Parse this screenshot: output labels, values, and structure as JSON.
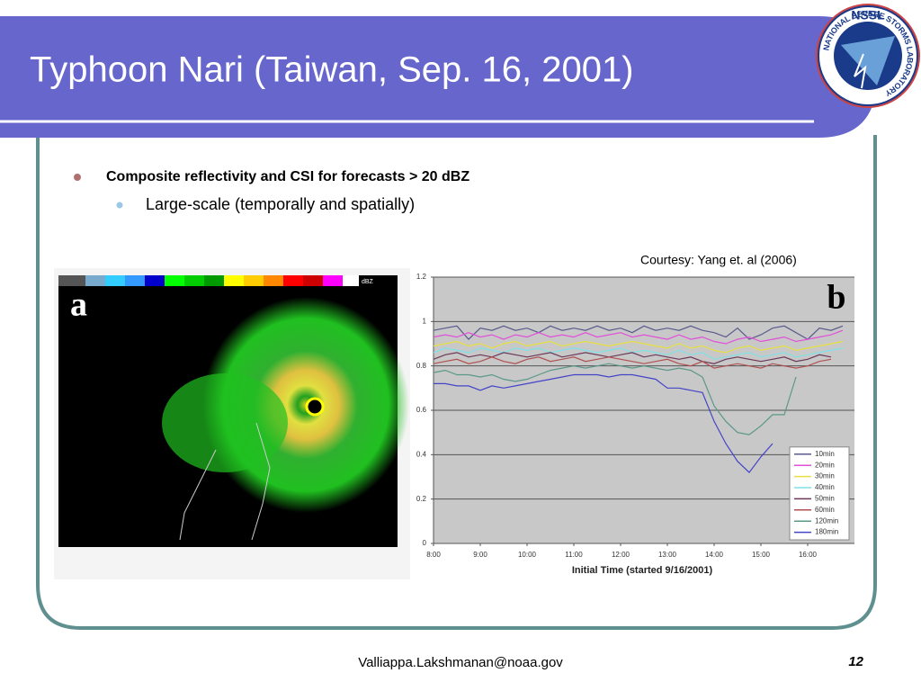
{
  "header": {
    "title": "Typhoon Nari (Taiwan, Sep. 16, 2001)",
    "logo": {
      "acronym": "NSSL",
      "ring": "NATIONAL SEVERE STORMS LABORATORY"
    }
  },
  "bullets": [
    {
      "text": "Composite reflectivity and CSI for forecasts > 20 dBZ",
      "sub": [
        "Large-scale (temporally and spatially)"
      ]
    }
  ],
  "credit": "Courtesy: Yang et. al (2006)",
  "panel_a": {
    "label": "a",
    "unit": "dBZ"
  },
  "chart_data": {
    "type": "line",
    "label": "b",
    "x_label": "Initial Time (started 9/16/2001)",
    "x": [
      8,
      8.25,
      8.5,
      8.75,
      9,
      9.25,
      9.5,
      9.75,
      10,
      10.25,
      10.5,
      10.75,
      11,
      11.25,
      11.5,
      11.75,
      12,
      12.25,
      12.5,
      12.75,
      13,
      13.25,
      13.5,
      13.75,
      14,
      14.25,
      14.5,
      14.75,
      15,
      15.25,
      15.5,
      15.75,
      16,
      16.25,
      16.5,
      16.75
    ],
    "xlim": [
      8,
      17
    ],
    "xticks": [
      {
        "value": 8,
        "label": "8:00"
      },
      {
        "value": 9,
        "label": "9:00"
      },
      {
        "value": 10,
        "label": "10:00"
      },
      {
        "value": 11,
        "label": "11:00"
      },
      {
        "value": 12,
        "label": "12:00"
      },
      {
        "value": 13,
        "label": "13:00"
      },
      {
        "value": 14,
        "label": "14:00"
      },
      {
        "value": 15,
        "label": "15:00"
      },
      {
        "value": 16,
        "label": "16:00"
      }
    ],
    "ylim": [
      0,
      1.2
    ],
    "yticks": [
      0,
      0.2,
      0.4,
      0.6,
      0.8,
      1,
      1.2
    ],
    "grid": true,
    "legend": "lower right",
    "series": [
      {
        "name": "10min",
        "color": "#5a5a8c",
        "values": [
          0.96,
          0.97,
          0.98,
          0.92,
          0.97,
          0.96,
          0.98,
          0.96,
          0.97,
          0.95,
          0.98,
          0.96,
          0.97,
          0.96,
          0.98,
          0.96,
          0.97,
          0.95,
          0.98,
          0.96,
          0.97,
          0.96,
          0.98,
          0.96,
          0.95,
          0.93,
          0.97,
          0.92,
          0.94,
          0.97,
          0.98,
          0.95,
          0.92,
          0.97,
          0.96,
          0.98
        ]
      },
      {
        "name": "20min",
        "color": "#e050d8",
        "values": [
          0.93,
          0.94,
          0.93,
          0.95,
          0.93,
          0.94,
          0.92,
          0.94,
          0.93,
          0.95,
          0.93,
          0.94,
          0.93,
          0.95,
          0.93,
          0.94,
          0.95,
          0.93,
          0.94,
          0.93,
          0.92,
          0.94,
          0.92,
          0.93,
          0.91,
          0.9,
          0.92,
          0.93,
          0.91,
          0.92,
          0.93,
          0.91,
          0.92,
          0.93,
          0.94,
          0.96
        ]
      },
      {
        "name": "30min",
        "color": "#e8e040",
        "values": [
          0.89,
          0.9,
          0.91,
          0.89,
          0.9,
          0.88,
          0.9,
          0.91,
          0.89,
          0.9,
          0.91,
          0.89,
          0.9,
          0.91,
          0.9,
          0.89,
          0.9,
          0.91,
          0.9,
          0.89,
          0.88,
          0.9,
          0.88,
          0.89,
          0.87,
          0.86,
          0.88,
          0.89,
          0.87,
          0.88,
          0.89,
          0.87,
          0.88,
          0.89,
          0.9,
          0.91
        ]
      },
      {
        "name": "40min",
        "color": "#80e0e8",
        "values": [
          0.86,
          0.88,
          0.87,
          0.86,
          0.88,
          0.87,
          0.86,
          0.88,
          0.87,
          0.88,
          0.86,
          0.87,
          0.88,
          0.87,
          0.86,
          0.87,
          0.88,
          0.86,
          0.87,
          0.86,
          0.85,
          0.87,
          0.85,
          0.86,
          0.83,
          0.84,
          0.85,
          0.86,
          0.84,
          0.85,
          0.86,
          0.84,
          0.85,
          0.86,
          0.87,
          0.88
        ]
      },
      {
        "name": "50min",
        "color": "#6a3858",
        "values": [
          0.83,
          0.85,
          0.86,
          0.84,
          0.85,
          0.84,
          0.86,
          0.85,
          0.84,
          0.85,
          0.86,
          0.84,
          0.85,
          0.86,
          0.85,
          0.84,
          0.85,
          0.86,
          0.84,
          0.85,
          0.84,
          0.83,
          0.84,
          0.82,
          0.81,
          0.83,
          0.84,
          0.83,
          0.82,
          0.83,
          0.84,
          0.82,
          0.83,
          0.85,
          0.84,
          null
        ]
      },
      {
        "name": "60min",
        "color": "#b05050",
        "values": [
          0.81,
          0.82,
          0.83,
          0.81,
          0.82,
          0.84,
          0.82,
          0.81,
          0.83,
          0.84,
          0.82,
          0.83,
          0.84,
          0.82,
          0.83,
          0.84,
          0.83,
          0.82,
          0.81,
          0.82,
          0.83,
          0.81,
          0.8,
          0.82,
          0.79,
          0.8,
          0.81,
          0.8,
          0.79,
          0.81,
          0.8,
          0.79,
          0.8,
          0.82,
          0.83,
          null
        ]
      },
      {
        "name": "120min",
        "color": "#5a9888",
        "values": [
          0.77,
          0.78,
          0.76,
          0.76,
          0.75,
          0.76,
          0.74,
          0.73,
          0.74,
          0.76,
          0.78,
          0.79,
          0.8,
          0.79,
          0.8,
          0.81,
          0.8,
          0.79,
          0.8,
          0.79,
          0.78,
          0.79,
          0.78,
          0.75,
          0.62,
          0.55,
          0.5,
          0.49,
          0.53,
          0.58,
          0.58,
          0.75,
          null,
          null,
          null,
          null
        ]
      },
      {
        "name": "180min",
        "color": "#4444c8",
        "values": [
          0.72,
          0.72,
          0.71,
          0.71,
          0.69,
          0.71,
          0.7,
          0.71,
          0.72,
          0.73,
          0.74,
          0.75,
          0.76,
          0.76,
          0.76,
          0.75,
          0.76,
          0.76,
          0.75,
          0.74,
          0.7,
          0.7,
          0.69,
          0.68,
          0.55,
          0.45,
          0.37,
          0.32,
          0.39,
          0.45,
          null,
          null,
          null,
          null,
          null,
          null
        ]
      }
    ]
  },
  "footer": {
    "email": "Valliappa.Lakshmanan@noaa.gov",
    "page": "12"
  }
}
